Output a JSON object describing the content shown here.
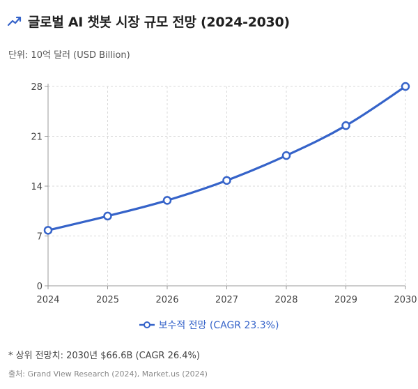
{
  "header": {
    "title": "글로벌 AI 챗봇 시장 규모 전망 (2024-2030)",
    "icon": "trend-up-icon"
  },
  "unit_label": "단위: 10억 달러 (USD Billion)",
  "legend": {
    "label": "보수적 전망 (CAGR 23.3%)"
  },
  "footnote": "* 상위 전망치: 2030년 $66.6B (CAGR 26.4%)",
  "source": "출처: Grand View Research (2024), Market.us (2024)",
  "colors": {
    "series": "#3563c9",
    "grid": "#d9d9d9",
    "axis": "#999999"
  },
  "chart_data": {
    "type": "line",
    "title": "글로벌 AI 챗봇 시장 규모 전망 (2024-2030)",
    "xlabel": "",
    "ylabel": "",
    "x": [
      "2024",
      "2025",
      "2026",
      "2027",
      "2028",
      "2029",
      "2030"
    ],
    "yticks": [
      0,
      7,
      14,
      21,
      28
    ],
    "ylim": [
      0,
      28
    ],
    "grid": true,
    "legend_position": "bottom",
    "series": [
      {
        "name": "보수적 전망 (CAGR 23.3%)",
        "values": [
          7.8,
          9.8,
          12.0,
          14.8,
          18.3,
          22.5,
          28.0
        ]
      }
    ]
  }
}
